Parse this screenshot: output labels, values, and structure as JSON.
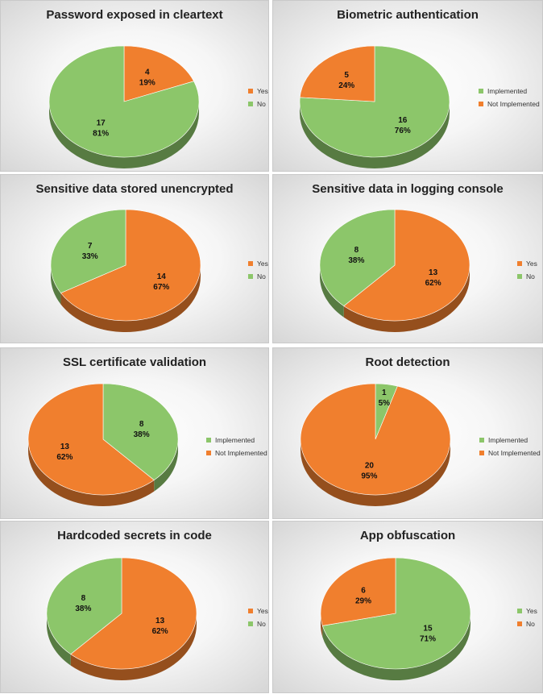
{
  "colors": {
    "orange": "#F07F2E",
    "green": "#8CC66A",
    "orange_dark": "#A85419",
    "green_dark": "#557F3B"
  },
  "chart_data": [
    {
      "type": "pie",
      "title": "Password exposed in cleartext",
      "slices": [
        {
          "label": "Yes",
          "value": 4,
          "percent": "19%",
          "color": "#F07F2E"
        },
        {
          "label": "No",
          "value": 17,
          "percent": "81%",
          "color": "#8CC66A"
        }
      ],
      "legend": [
        "Yes",
        "No"
      ],
      "legend_position": "right"
    },
    {
      "type": "pie",
      "title": "Biometric authentication",
      "slices": [
        {
          "label": "Implemented",
          "value": 16,
          "percent": "76%",
          "color": "#8CC66A"
        },
        {
          "label": "Not Implemented",
          "value": 5,
          "percent": "24%",
          "color": "#F07F2E"
        }
      ],
      "legend": [
        "Implemented",
        "Not Implemented"
      ],
      "legend_position": "right"
    },
    {
      "type": "pie",
      "title": "Sensitive data stored unencrypted",
      "slices": [
        {
          "label": "Yes",
          "value": 14,
          "percent": "67%",
          "color": "#F07F2E"
        },
        {
          "label": "No",
          "value": 7,
          "percent": "33%",
          "color": "#8CC66A"
        }
      ],
      "legend": [
        "Yes",
        "No"
      ],
      "legend_position": "right"
    },
    {
      "type": "pie",
      "title": "Sensitive data in logging console",
      "slices": [
        {
          "label": "Yes",
          "value": 13,
          "percent": "62%",
          "color": "#F07F2E"
        },
        {
          "label": "No",
          "value": 8,
          "percent": "38%",
          "color": "#8CC66A"
        }
      ],
      "legend": [
        "Yes",
        "No"
      ],
      "legend_position": "right"
    },
    {
      "type": "pie",
      "title": "SSL certificate validation",
      "slices": [
        {
          "label": "Implemented",
          "value": 8,
          "percent": "38%",
          "color": "#8CC66A"
        },
        {
          "label": "Not Implemented",
          "value": 13,
          "percent": "62%",
          "color": "#F07F2E"
        }
      ],
      "legend": [
        "Implemented",
        "Not Implemented"
      ],
      "legend_position": "right"
    },
    {
      "type": "pie",
      "title": "Root detection",
      "slices": [
        {
          "label": "Implemented",
          "value": 1,
          "percent": "5%",
          "color": "#8CC66A"
        },
        {
          "label": "Not Implemented",
          "value": 20,
          "percent": "95%",
          "color": "#F07F2E"
        }
      ],
      "legend": [
        "Implemented",
        "Not Implemented"
      ],
      "legend_position": "right"
    },
    {
      "type": "pie",
      "title": "Hardcoded secrets in code",
      "slices": [
        {
          "label": "Yes",
          "value": 13,
          "percent": "62%",
          "color": "#F07F2E"
        },
        {
          "label": "No",
          "value": 8,
          "percent": "38%",
          "color": "#8CC66A"
        }
      ],
      "legend": [
        "Yes",
        "No"
      ],
      "legend_position": "right"
    },
    {
      "type": "pie",
      "title": "App obfuscation",
      "slices": [
        {
          "label": "Yes",
          "value": 15,
          "percent": "71%",
          "color": "#8CC66A"
        },
        {
          "label": "No",
          "value": 6,
          "percent": "29%",
          "color": "#F07F2E"
        }
      ],
      "legend": [
        "Yes",
        "No"
      ],
      "legend_position": "right"
    }
  ]
}
